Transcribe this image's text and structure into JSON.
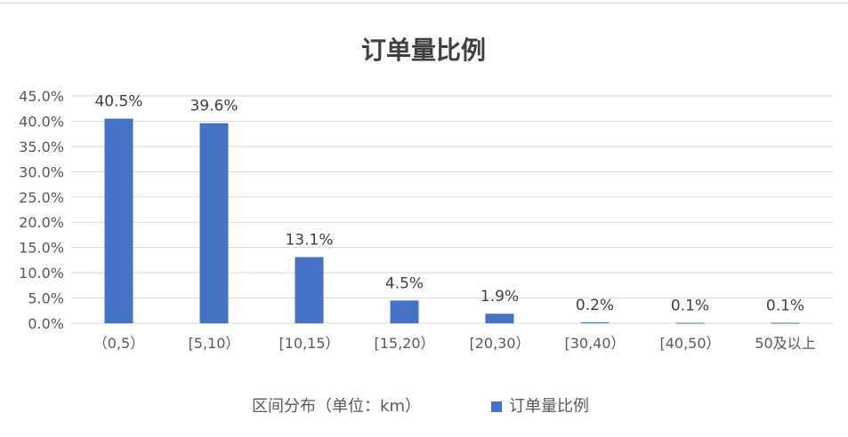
{
  "chart_data": {
    "type": "bar",
    "title": "订单量比例",
    "xlabel": "区间分布（单位：km）",
    "ylabel": "",
    "categories": [
      "（0,5）",
      "[5,10）",
      "[10,15）",
      "[15,20）",
      "[20,30）",
      "[30,40）",
      "[40,50）",
      "50及以上"
    ],
    "series": [
      {
        "name": "订单量比例",
        "values": [
          40.5,
          39.6,
          13.1,
          4.5,
          1.9,
          0.2,
          0.1,
          0.1
        ],
        "value_labels": [
          "40.5%",
          "39.6%",
          "13.1%",
          "4.5%",
          "1.9%",
          "0.2%",
          "0.1%",
          "0.1%"
        ],
        "color": "#4472C4"
      }
    ],
    "ylim": [
      0,
      45
    ],
    "yticks": [
      0,
      5,
      10,
      15,
      20,
      25,
      30,
      35,
      40,
      45
    ],
    "ytick_labels": [
      "0.0%",
      "5.0%",
      "10.0%",
      "15.0%",
      "20.0%",
      "25.0%",
      "30.0%",
      "35.0%",
      "40.0%",
      "45.0%"
    ],
    "grid": true,
    "legend_position": "bottom",
    "gridline_color": "#d9d9d9"
  }
}
